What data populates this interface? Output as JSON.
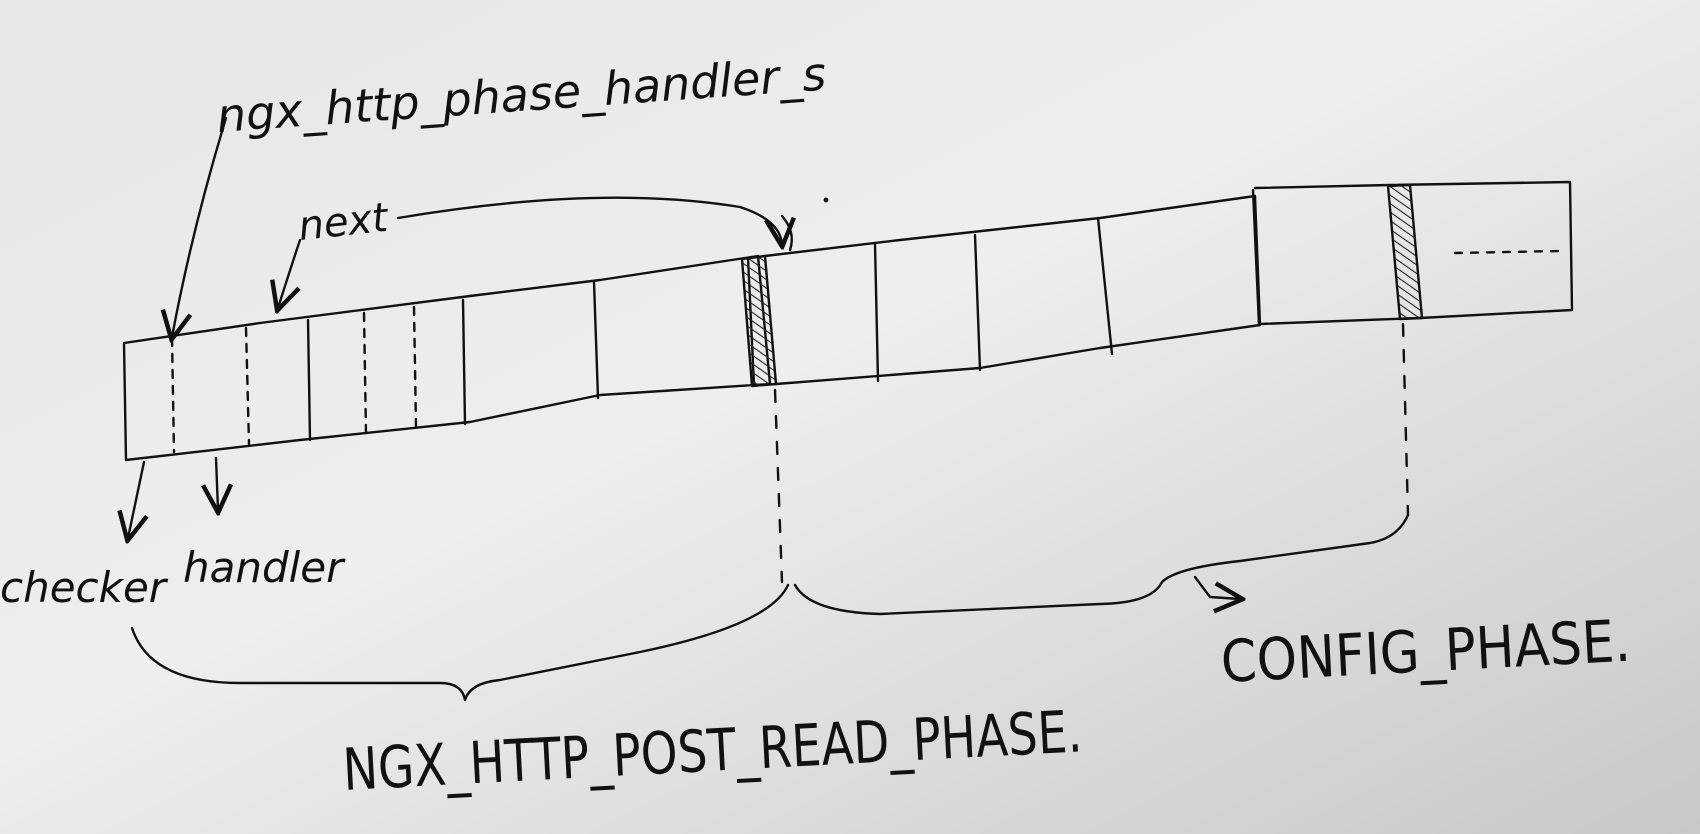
{
  "labels": {
    "handler_s": "ngx_http_phase_handler_s",
    "next": "next",
    "checker": "checker",
    "handler": "handler",
    "post_read_phase": "NGX_HTTP_POST_READ_PHASE.",
    "config_phase": "CONFIG_PHASE."
  },
  "colors": {
    "ink": "#111111",
    "paper_light": "#ebebeb",
    "paper_dark": "#c9c9c9"
  }
}
